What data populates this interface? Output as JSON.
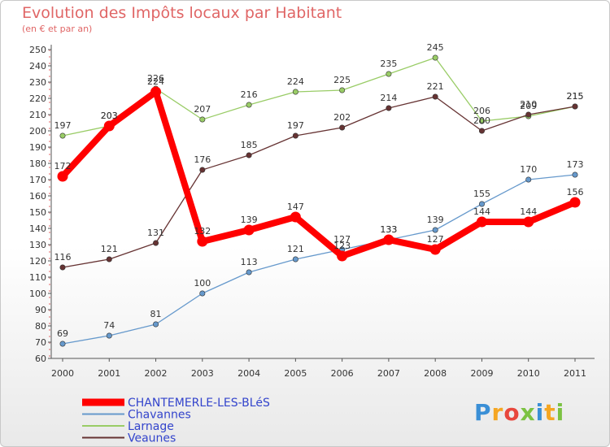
{
  "title": "Evolution des Impôts locaux par Habitant",
  "subtitle": "(en € et par an)",
  "logo": {
    "letters": [
      "P",
      "r",
      "o",
      "x",
      "i",
      "t",
      "i"
    ],
    "colors": [
      "#3a8fd6",
      "#f5a623",
      "#e8473c",
      "#7cc242",
      "#3a8fd6",
      "#f5a623",
      "#7cc242"
    ]
  },
  "chart_data": {
    "type": "line",
    "title": "Evolution des Impôts locaux par Habitant",
    "subtitle": "(en € et par an)",
    "xlabel": "",
    "ylabel": "",
    "ylim": [
      60,
      250
    ],
    "ytick_step": 10,
    "grid": false,
    "legend_position": "bottom-left",
    "categories": [
      "2000",
      "2001",
      "2002",
      "2003",
      "2004",
      "2005",
      "2006",
      "2007",
      "2008",
      "2009",
      "2010",
      "2011"
    ],
    "series": [
      {
        "name": "CHANTEMERLE-LES-BLéS",
        "color": "#ff0000",
        "values": [
          172,
          203,
          224,
          132,
          139,
          147,
          123,
          133,
          127,
          144,
          144,
          156
        ]
      },
      {
        "name": "Chavannes",
        "color": "#6699cc",
        "values": [
          69,
          74,
          81,
          100,
          113,
          121,
          127,
          133,
          139,
          155,
          170,
          173
        ]
      },
      {
        "name": "Larnage",
        "color": "#99cc66",
        "values": [
          197,
          203,
          226,
          207,
          216,
          224,
          225,
          235,
          245,
          206,
          209,
          215
        ]
      },
      {
        "name": "Veaunes",
        "color": "#663333",
        "values": [
          116,
          121,
          131,
          176,
          185,
          197,
          202,
          214,
          221,
          200,
          210,
          215
        ]
      }
    ]
  }
}
